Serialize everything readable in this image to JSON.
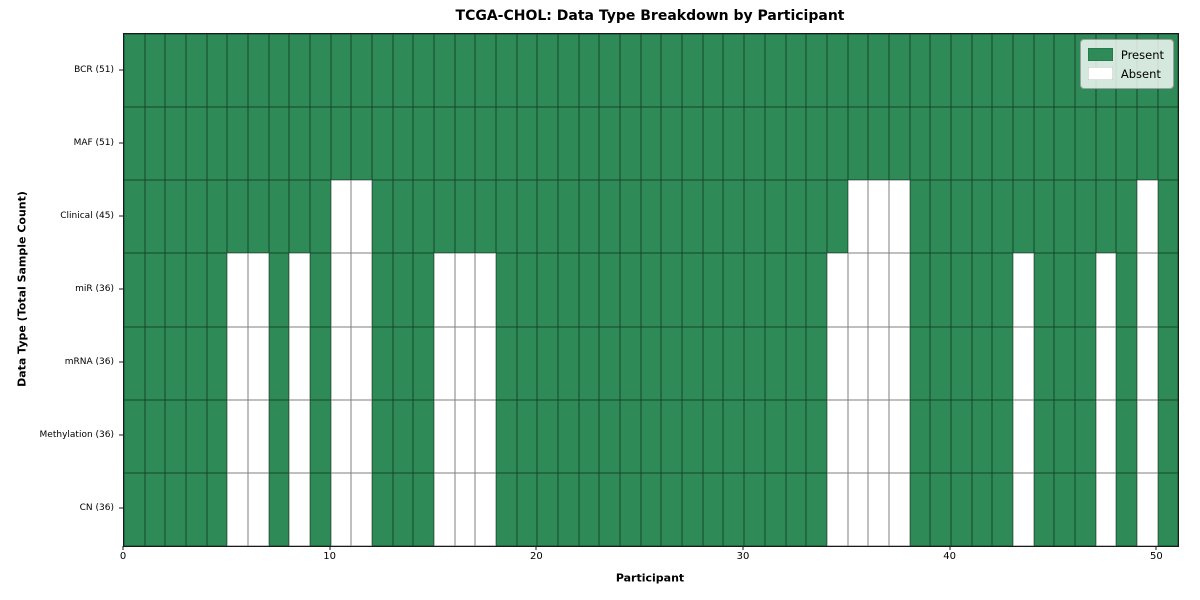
{
  "figure": {
    "title": "TCGA-CHOL: Data Type Breakdown by Participant",
    "xlabel": "Participant",
    "ylabel": "Data Type (Total Sample Count)"
  },
  "chart_data": {
    "type": "heatmap",
    "title": "TCGA-CHOL: Data Type Breakdown by Participant",
    "xlabel": "Participant",
    "ylabel": "Data Type (Total Sample Count)",
    "n_participants": 51,
    "x_range": [
      0,
      51
    ],
    "x_ticks": [
      0,
      10,
      20,
      30,
      40,
      50
    ],
    "grid": "cell-borders",
    "colors": {
      "present": "#2E8B57",
      "absent": "#FFFFFF",
      "cell_edge": "rgba(0,0,0,0.5)"
    },
    "legend": {
      "loc": "upper right",
      "entries": [
        {
          "label": "Present",
          "color": "#2E8B57"
        },
        {
          "label": "Absent",
          "color": "#FFFFFF"
        }
      ]
    },
    "rows": [
      {
        "label": "BCR (51)",
        "data_type": "BCR",
        "present_count": 51,
        "absent_participants": []
      },
      {
        "label": "MAF (51)",
        "data_type": "MAF",
        "present_count": 51,
        "absent_participants": []
      },
      {
        "label": "Clinical (45)",
        "data_type": "Clinical",
        "present_count": 45,
        "absent_participants": [
          10,
          11,
          35,
          36,
          37,
          49
        ]
      },
      {
        "label": "miR (36)",
        "data_type": "miR",
        "present_count": 36,
        "absent_participants": [
          5,
          6,
          8,
          10,
          11,
          15,
          16,
          17,
          34,
          35,
          36,
          37,
          43,
          47,
          49
        ]
      },
      {
        "label": "mRNA (36)",
        "data_type": "mRNA",
        "present_count": 36,
        "absent_participants": [
          5,
          6,
          8,
          10,
          11,
          15,
          16,
          17,
          34,
          35,
          36,
          37,
          43,
          47,
          49
        ]
      },
      {
        "label": "Methylation (36)",
        "data_type": "Methylation",
        "present_count": 36,
        "absent_participants": [
          5,
          6,
          8,
          10,
          11,
          15,
          16,
          17,
          34,
          35,
          36,
          37,
          43,
          47,
          49
        ]
      },
      {
        "label": "CN (36)",
        "data_type": "CN",
        "present_count": 36,
        "absent_participants": [
          5,
          6,
          8,
          10,
          11,
          15,
          16,
          17,
          34,
          35,
          36,
          37,
          43,
          47,
          49
        ]
      }
    ]
  }
}
